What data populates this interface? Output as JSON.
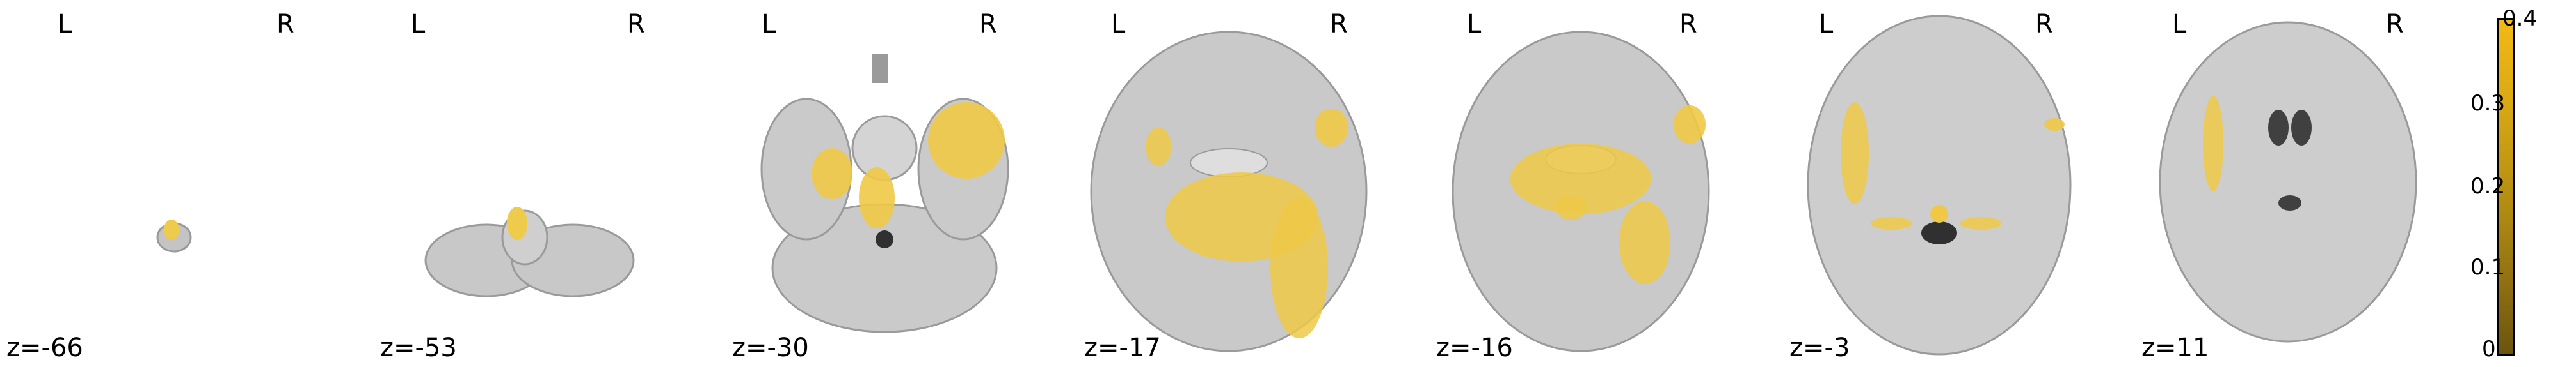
{
  "orientation": {
    "left": "L",
    "right": "R"
  },
  "slices": [
    {
      "label": "z=-66"
    },
    {
      "label": "z=-53"
    },
    {
      "label": "z=-30"
    },
    {
      "label": "z=-17"
    },
    {
      "label": "z=-16"
    },
    {
      "label": "z=-3"
    },
    {
      "label": "z=11"
    }
  ],
  "colorbar": {
    "ticks": [
      "0.4",
      "0.3",
      "0.2",
      "0.1",
      "0"
    ],
    "colormap": [
      "#6b5410",
      "#f4ba14"
    ],
    "range": [
      0,
      0.4
    ]
  },
  "colors": {
    "brain": "#b8b8b8",
    "overlay": "#f2c436"
  }
}
